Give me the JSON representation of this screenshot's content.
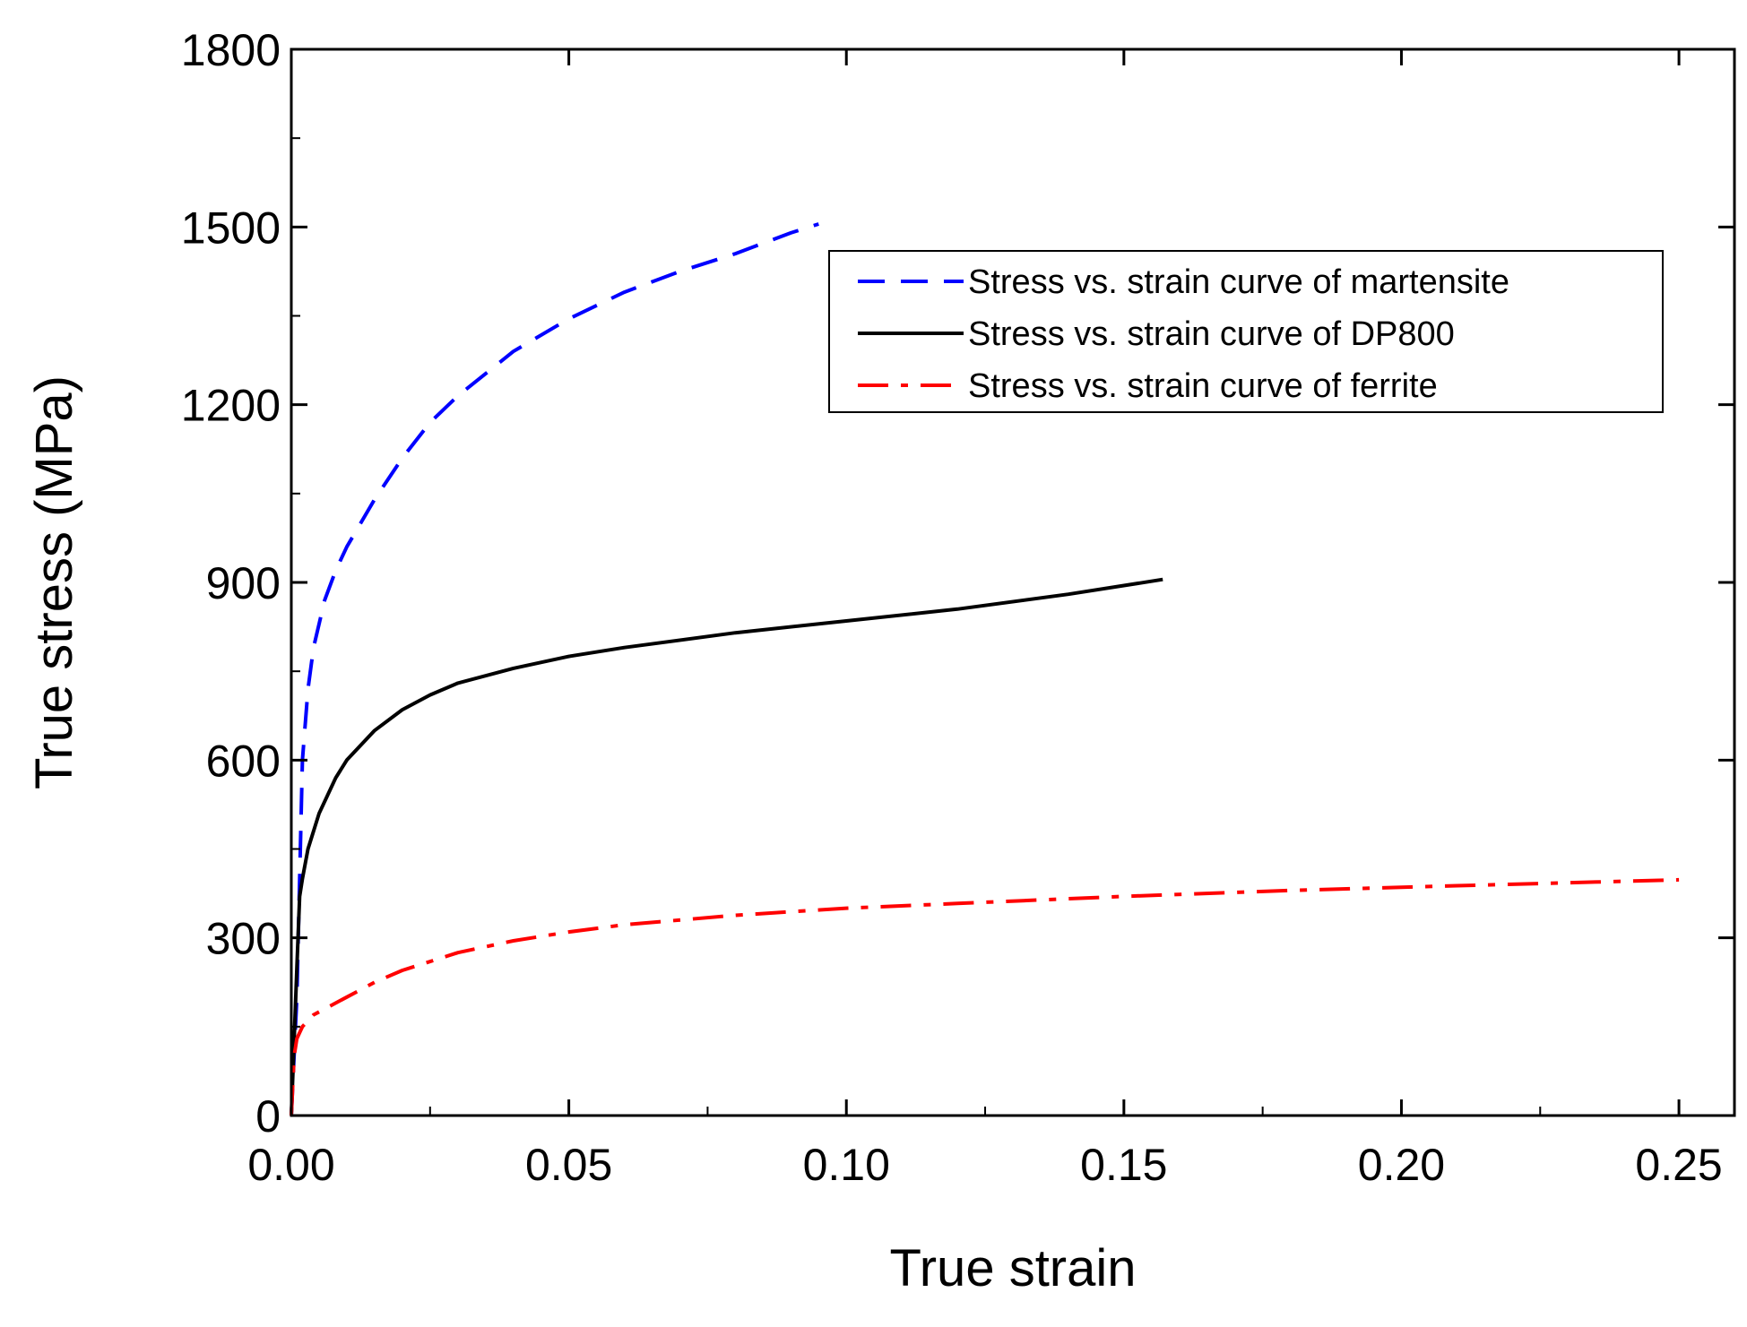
{
  "chart_data": {
    "type": "line",
    "title": "",
    "xlabel": "True strain",
    "ylabel": "True stress (MPa)",
    "xlim": [
      0,
      0.26
    ],
    "ylim": [
      0,
      1800
    ],
    "x_ticks": [
      0,
      0.05,
      0.1,
      0.15,
      0.2,
      0.25
    ],
    "x_tick_labels": [
      "0.00",
      "0.05",
      "0.10",
      "0.15",
      "0.20",
      "0.25"
    ],
    "y_ticks": [
      0,
      300,
      600,
      900,
      1200,
      1500,
      1800
    ],
    "y_tick_labels": [
      "0",
      "300",
      "600",
      "900",
      "1200",
      "1500",
      "1800"
    ],
    "grid": false,
    "legend_position": "top-right",
    "series": [
      {
        "name": "Stress vs. strain curve of martensite",
        "color": "#0000ff",
        "style": "dashed",
        "x": [
          0,
          0.001,
          0.0015,
          0.002,
          0.003,
          0.004,
          0.006,
          0.008,
          0.01,
          0.015,
          0.02,
          0.025,
          0.03,
          0.04,
          0.05,
          0.06,
          0.07,
          0.08,
          0.09,
          0.095
        ],
        "y": [
          0,
          200,
          400,
          600,
          720,
          790,
          870,
          920,
          960,
          1040,
          1110,
          1170,
          1215,
          1290,
          1345,
          1390,
          1425,
          1455,
          1490,
          1505
        ]
      },
      {
        "name": "Stress vs. strain curve of DP800",
        "color": "#000000",
        "style": "solid",
        "x": [
          0,
          0.001,
          0.0015,
          0.002,
          0.003,
          0.005,
          0.008,
          0.01,
          0.015,
          0.02,
          0.025,
          0.03,
          0.04,
          0.05,
          0.06,
          0.08,
          0.1,
          0.12,
          0.14,
          0.157
        ],
        "y": [
          0,
          250,
          370,
          400,
          450,
          510,
          570,
          600,
          650,
          685,
          710,
          730,
          755,
          775,
          790,
          815,
          835,
          855,
          880,
          905
        ]
      },
      {
        "name": "Stress vs. strain curve of ferrite",
        "color": "#ff0000",
        "style": "dash-dot",
        "x": [
          0,
          0.0005,
          0.001,
          0.002,
          0.004,
          0.006,
          0.01,
          0.015,
          0.02,
          0.03,
          0.04,
          0.05,
          0.06,
          0.08,
          0.1,
          0.12,
          0.15,
          0.18,
          0.21,
          0.25
        ],
        "y": [
          0,
          100,
          130,
          150,
          170,
          180,
          200,
          225,
          245,
          275,
          295,
          310,
          322,
          338,
          350,
          358,
          370,
          380,
          388,
          398
        ]
      }
    ]
  }
}
